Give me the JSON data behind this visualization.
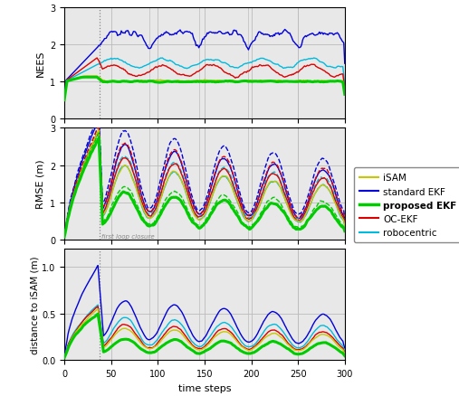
{
  "colors": {
    "isam": "#c8c800",
    "std_ekf": "#0000dd",
    "prop_ekf": "#00cc00",
    "oc_ekf": "#dd0000",
    "robocentric": "#00bbdd"
  },
  "loop_closure_step": 38,
  "loop_closure_period": 53,
  "xlim": [
    0,
    300
  ],
  "xticks": [
    0,
    50,
    100,
    150,
    200,
    250,
    300
  ],
  "nees_ylim": [
    0,
    3
  ],
  "nees_yticks": [
    0,
    1,
    2,
    3
  ],
  "rmse_ylim": [
    0,
    3
  ],
  "rmse_yticks": [
    0,
    1,
    2,
    3
  ],
  "dist_ylim": [
    0,
    1.2
  ],
  "dist_yticks": [
    0,
    0.5,
    1
  ],
  "xlabel": "time steps",
  "ylabel_nees": "NEES",
  "ylabel_rmse": "RMSE (m)",
  "ylabel_dist": "distance to iSAM (m)",
  "legend_entries": [
    "iSAM",
    "standard EKF",
    "proposed EKF",
    "OC-EKF",
    "robocentric"
  ],
  "annotation_text": "first loop closure",
  "grid_color": "#bbbbbb",
  "bg_color": "#e8e8e8"
}
